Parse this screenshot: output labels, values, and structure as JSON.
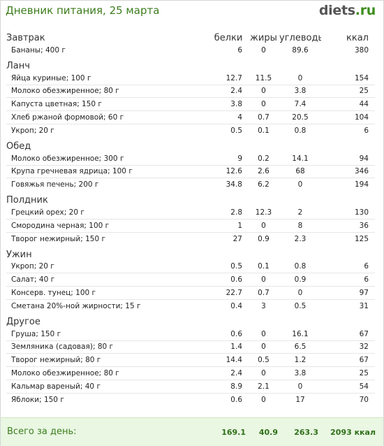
{
  "header": {
    "title": "Дневник питания, 25 марта",
    "logo_main": "diets",
    "logo_tld": ".ru"
  },
  "columns": {
    "section_first": "Завтрак",
    "protein": "белки",
    "fat": "жиры",
    "carbs": "углеводы",
    "kcal": "ккал"
  },
  "meals": [
    {
      "name": "Завтрак",
      "items": [
        {
          "name": "Бананы; 400 г",
          "protein": "6",
          "fat": "0",
          "carbs": "89.6",
          "kcal": "380"
        }
      ]
    },
    {
      "name": "Ланч",
      "items": [
        {
          "name": "Яйца куриные; 100 г",
          "protein": "12.7",
          "fat": "11.5",
          "carbs": "0",
          "kcal": "154"
        },
        {
          "name": "Молоко обезжиренное; 80 г",
          "protein": "2.4",
          "fat": "0",
          "carbs": "3.8",
          "kcal": "25"
        },
        {
          "name": "Капуста цветная; 150 г",
          "protein": "3.8",
          "fat": "0",
          "carbs": "7.4",
          "kcal": "44"
        },
        {
          "name": "Хлеб ржаной формовой; 60 г",
          "protein": "4",
          "fat": "0.7",
          "carbs": "20.5",
          "kcal": "104"
        },
        {
          "name": "Укроп; 20 г",
          "protein": "0.5",
          "fat": "0.1",
          "carbs": "0.8",
          "kcal": "6"
        }
      ]
    },
    {
      "name": "Обед",
      "items": [
        {
          "name": "Молоко обезжиренное; 300 г",
          "protein": "9",
          "fat": "0.2",
          "carbs": "14.1",
          "kcal": "94"
        },
        {
          "name": "Крупа гречневая ядрица; 100 г",
          "protein": "12.6",
          "fat": "2.6",
          "carbs": "68",
          "kcal": "346"
        },
        {
          "name": "Говяжья печень; 200 г",
          "protein": "34.8",
          "fat": "6.2",
          "carbs": "0",
          "kcal": "194"
        }
      ]
    },
    {
      "name": "Полдник",
      "items": [
        {
          "name": "Грецкий орех; 20 г",
          "protein": "2.8",
          "fat": "12.3",
          "carbs": "2",
          "kcal": "130"
        },
        {
          "name": "Смородина черная; 100 г",
          "protein": "1",
          "fat": "0",
          "carbs": "8",
          "kcal": "36"
        },
        {
          "name": "Творог нежирный; 150 г",
          "protein": "27",
          "fat": "0.9",
          "carbs": "2.3",
          "kcal": "125"
        }
      ]
    },
    {
      "name": "Ужин",
      "items": [
        {
          "name": "Укроп; 20 г",
          "protein": "0.5",
          "fat": "0.1",
          "carbs": "0.8",
          "kcal": "6"
        },
        {
          "name": "Салат; 40 г",
          "protein": "0.6",
          "fat": "0",
          "carbs": "0.9",
          "kcal": "6"
        },
        {
          "name": "Консерв. тунец; 100 г",
          "protein": "22.7",
          "fat": "0.7",
          "carbs": "0",
          "kcal": "97"
        },
        {
          "name": "Сметана 20%-ной жирности; 15 г",
          "protein": "0.4",
          "fat": "3",
          "carbs": "0.5",
          "kcal": "31"
        }
      ]
    },
    {
      "name": "Другое",
      "items": [
        {
          "name": "Груша; 150 г",
          "protein": "0.6",
          "fat": "0",
          "carbs": "16.1",
          "kcal": "67"
        },
        {
          "name": "Земляника (садовая); 80 г",
          "protein": "1.4",
          "fat": "0",
          "carbs": "6.5",
          "kcal": "32"
        },
        {
          "name": "Творог нежирный; 80 г",
          "protein": "14.4",
          "fat": "0.5",
          "carbs": "1.2",
          "kcal": "67"
        },
        {
          "name": "Молоко обезжиренное; 80 г",
          "protein": "2.4",
          "fat": "0",
          "carbs": "3.8",
          "kcal": "25"
        },
        {
          "name": "Кальмар вареный; 40 г",
          "protein": "8.9",
          "fat": "2.1",
          "carbs": "0",
          "kcal": "54"
        },
        {
          "name": "Яблоки; 150 г",
          "protein": "0.6",
          "fat": "0",
          "carbs": "17",
          "kcal": "70"
        }
      ]
    }
  ],
  "total": {
    "label": "Всего за день:",
    "protein": "169.1",
    "fat": "40.9",
    "carbs": "263.3",
    "kcal": "2093 ккал"
  }
}
